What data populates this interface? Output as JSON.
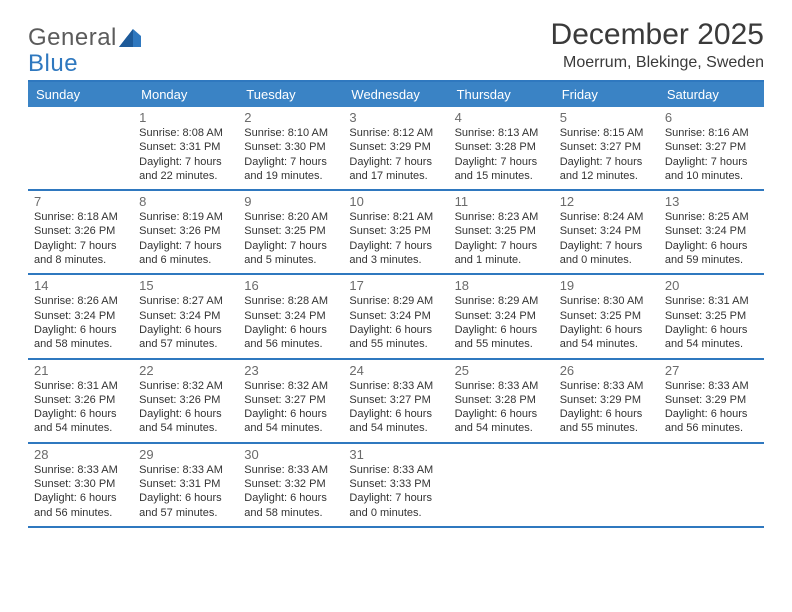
{
  "logo": {
    "word1": "General",
    "word2": "Blue"
  },
  "title": "December 2025",
  "location": "Moerrum, Blekinge, Sweden",
  "colors": {
    "accent": "#2f78bf",
    "header_bg": "#3a83c5",
    "header_fg": "#ffffff",
    "text": "#333333",
    "daynum": "#6b6b6b",
    "logo_gray": "#5b5b5b"
  },
  "weekdays": [
    "Sunday",
    "Monday",
    "Tuesday",
    "Wednesday",
    "Thursday",
    "Friday",
    "Saturday"
  ],
  "weeks": [
    [
      null,
      {
        "n": "1",
        "sr": "Sunrise: 8:08 AM",
        "ss": "Sunset: 3:31 PM",
        "d1": "Daylight: 7 hours",
        "d2": "and 22 minutes."
      },
      {
        "n": "2",
        "sr": "Sunrise: 8:10 AM",
        "ss": "Sunset: 3:30 PM",
        "d1": "Daylight: 7 hours",
        "d2": "and 19 minutes."
      },
      {
        "n": "3",
        "sr": "Sunrise: 8:12 AM",
        "ss": "Sunset: 3:29 PM",
        "d1": "Daylight: 7 hours",
        "d2": "and 17 minutes."
      },
      {
        "n": "4",
        "sr": "Sunrise: 8:13 AM",
        "ss": "Sunset: 3:28 PM",
        "d1": "Daylight: 7 hours",
        "d2": "and 15 minutes."
      },
      {
        "n": "5",
        "sr": "Sunrise: 8:15 AM",
        "ss": "Sunset: 3:27 PM",
        "d1": "Daylight: 7 hours",
        "d2": "and 12 minutes."
      },
      {
        "n": "6",
        "sr": "Sunrise: 8:16 AM",
        "ss": "Sunset: 3:27 PM",
        "d1": "Daylight: 7 hours",
        "d2": "and 10 minutes."
      }
    ],
    [
      {
        "n": "7",
        "sr": "Sunrise: 8:18 AM",
        "ss": "Sunset: 3:26 PM",
        "d1": "Daylight: 7 hours",
        "d2": "and 8 minutes."
      },
      {
        "n": "8",
        "sr": "Sunrise: 8:19 AM",
        "ss": "Sunset: 3:26 PM",
        "d1": "Daylight: 7 hours",
        "d2": "and 6 minutes."
      },
      {
        "n": "9",
        "sr": "Sunrise: 8:20 AM",
        "ss": "Sunset: 3:25 PM",
        "d1": "Daylight: 7 hours",
        "d2": "and 5 minutes."
      },
      {
        "n": "10",
        "sr": "Sunrise: 8:21 AM",
        "ss": "Sunset: 3:25 PM",
        "d1": "Daylight: 7 hours",
        "d2": "and 3 minutes."
      },
      {
        "n": "11",
        "sr": "Sunrise: 8:23 AM",
        "ss": "Sunset: 3:25 PM",
        "d1": "Daylight: 7 hours",
        "d2": "and 1 minute."
      },
      {
        "n": "12",
        "sr": "Sunrise: 8:24 AM",
        "ss": "Sunset: 3:24 PM",
        "d1": "Daylight: 7 hours",
        "d2": "and 0 minutes."
      },
      {
        "n": "13",
        "sr": "Sunrise: 8:25 AM",
        "ss": "Sunset: 3:24 PM",
        "d1": "Daylight: 6 hours",
        "d2": "and 59 minutes."
      }
    ],
    [
      {
        "n": "14",
        "sr": "Sunrise: 8:26 AM",
        "ss": "Sunset: 3:24 PM",
        "d1": "Daylight: 6 hours",
        "d2": "and 58 minutes."
      },
      {
        "n": "15",
        "sr": "Sunrise: 8:27 AM",
        "ss": "Sunset: 3:24 PM",
        "d1": "Daylight: 6 hours",
        "d2": "and 57 minutes."
      },
      {
        "n": "16",
        "sr": "Sunrise: 8:28 AM",
        "ss": "Sunset: 3:24 PM",
        "d1": "Daylight: 6 hours",
        "d2": "and 56 minutes."
      },
      {
        "n": "17",
        "sr": "Sunrise: 8:29 AM",
        "ss": "Sunset: 3:24 PM",
        "d1": "Daylight: 6 hours",
        "d2": "and 55 minutes."
      },
      {
        "n": "18",
        "sr": "Sunrise: 8:29 AM",
        "ss": "Sunset: 3:24 PM",
        "d1": "Daylight: 6 hours",
        "d2": "and 55 minutes."
      },
      {
        "n": "19",
        "sr": "Sunrise: 8:30 AM",
        "ss": "Sunset: 3:25 PM",
        "d1": "Daylight: 6 hours",
        "d2": "and 54 minutes."
      },
      {
        "n": "20",
        "sr": "Sunrise: 8:31 AM",
        "ss": "Sunset: 3:25 PM",
        "d1": "Daylight: 6 hours",
        "d2": "and 54 minutes."
      }
    ],
    [
      {
        "n": "21",
        "sr": "Sunrise: 8:31 AM",
        "ss": "Sunset: 3:26 PM",
        "d1": "Daylight: 6 hours",
        "d2": "and 54 minutes."
      },
      {
        "n": "22",
        "sr": "Sunrise: 8:32 AM",
        "ss": "Sunset: 3:26 PM",
        "d1": "Daylight: 6 hours",
        "d2": "and 54 minutes."
      },
      {
        "n": "23",
        "sr": "Sunrise: 8:32 AM",
        "ss": "Sunset: 3:27 PM",
        "d1": "Daylight: 6 hours",
        "d2": "and 54 minutes."
      },
      {
        "n": "24",
        "sr": "Sunrise: 8:33 AM",
        "ss": "Sunset: 3:27 PM",
        "d1": "Daylight: 6 hours",
        "d2": "and 54 minutes."
      },
      {
        "n": "25",
        "sr": "Sunrise: 8:33 AM",
        "ss": "Sunset: 3:28 PM",
        "d1": "Daylight: 6 hours",
        "d2": "and 54 minutes."
      },
      {
        "n": "26",
        "sr": "Sunrise: 8:33 AM",
        "ss": "Sunset: 3:29 PM",
        "d1": "Daylight: 6 hours",
        "d2": "and 55 minutes."
      },
      {
        "n": "27",
        "sr": "Sunrise: 8:33 AM",
        "ss": "Sunset: 3:29 PM",
        "d1": "Daylight: 6 hours",
        "d2": "and 56 minutes."
      }
    ],
    [
      {
        "n": "28",
        "sr": "Sunrise: 8:33 AM",
        "ss": "Sunset: 3:30 PM",
        "d1": "Daylight: 6 hours",
        "d2": "and 56 minutes."
      },
      {
        "n": "29",
        "sr": "Sunrise: 8:33 AM",
        "ss": "Sunset: 3:31 PM",
        "d1": "Daylight: 6 hours",
        "d2": "and 57 minutes."
      },
      {
        "n": "30",
        "sr": "Sunrise: 8:33 AM",
        "ss": "Sunset: 3:32 PM",
        "d1": "Daylight: 6 hours",
        "d2": "and 58 minutes."
      },
      {
        "n": "31",
        "sr": "Sunrise: 8:33 AM",
        "ss": "Sunset: 3:33 PM",
        "d1": "Daylight: 7 hours",
        "d2": "and 0 minutes."
      },
      null,
      null,
      null
    ]
  ]
}
